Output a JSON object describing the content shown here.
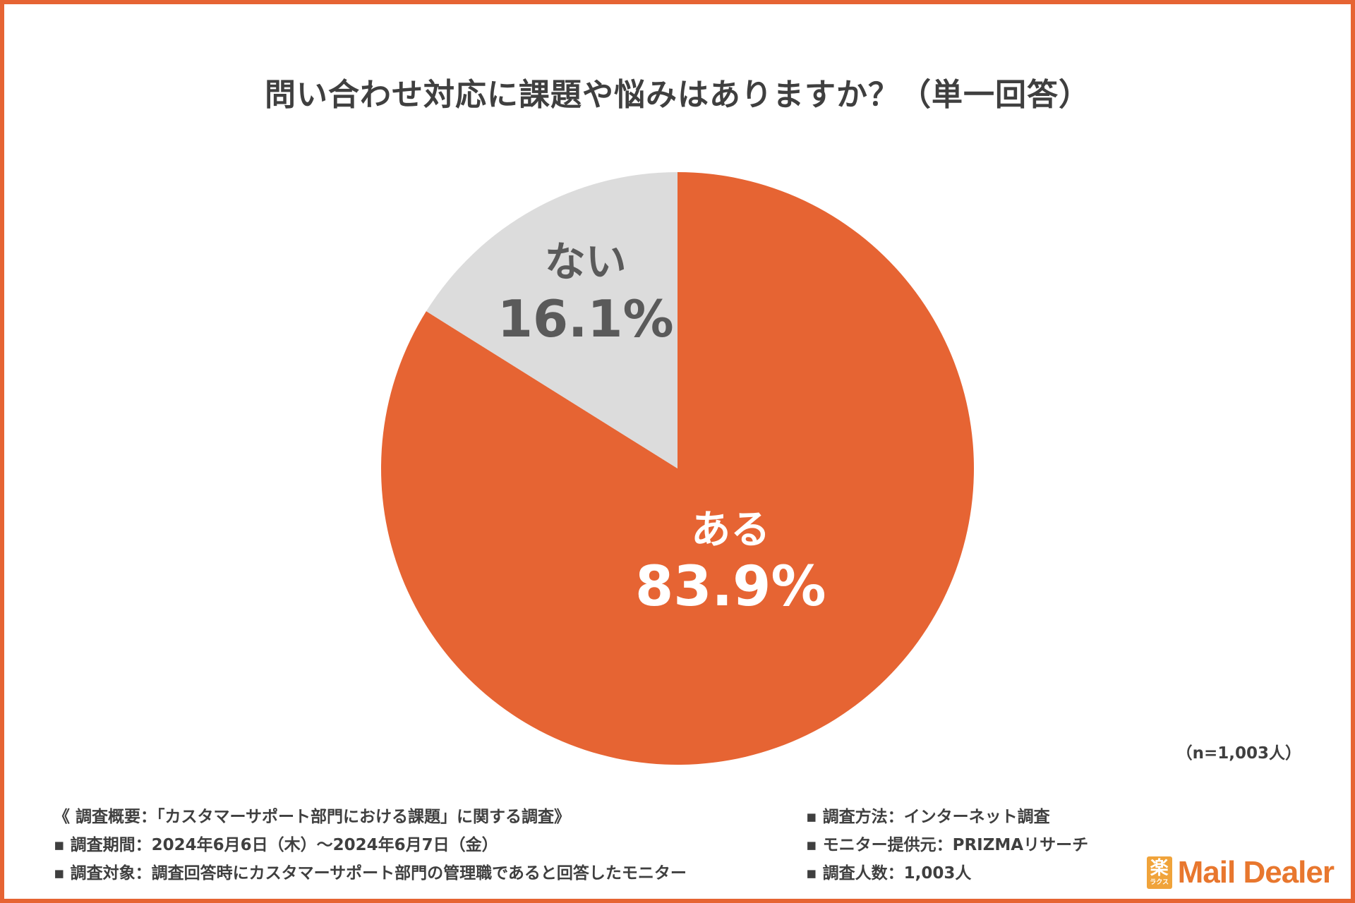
{
  "title": "問い合わせ対応に課題や悩みはありますか？（単一回答）",
  "sample_size": "（n=1,003人）",
  "colors": {
    "frame": "#e66433",
    "yes": "#e66433",
    "no": "#dcdcdc"
  },
  "chart_data": {
    "type": "pie",
    "title": "問い合わせ対応に課題や悩みはありますか？（単一回答）",
    "slices": [
      {
        "label": "ある",
        "value": 83.9,
        "display": "83.9%",
        "color": "#e66433",
        "text_color": "#ffffff"
      },
      {
        "label": "ない",
        "value": 16.1,
        "display": "16.1%",
        "color": "#dcdcdc",
        "text_color": "#5a5a5a"
      }
    ]
  },
  "notes": {
    "left": [
      "《 調査概要：「カスタマーサポート部門における課題」に関する調査》",
      "▪ 調査期間：2024年6月6日（木）〜2024年6月7日（金）",
      "▪ 調査対象：調査回答時にカスタマーサポート部門の管理職であると回答したモニター"
    ],
    "right": [
      "▪ 調査方法：インターネット調査",
      "▪ モニター提供元：PRIZMAリサーチ",
      "▪ 調査人数：1,003人"
    ]
  },
  "logo": {
    "mark_top": "楽",
    "mark_bottom": "ラクス",
    "text": "Mail Dealer"
  }
}
